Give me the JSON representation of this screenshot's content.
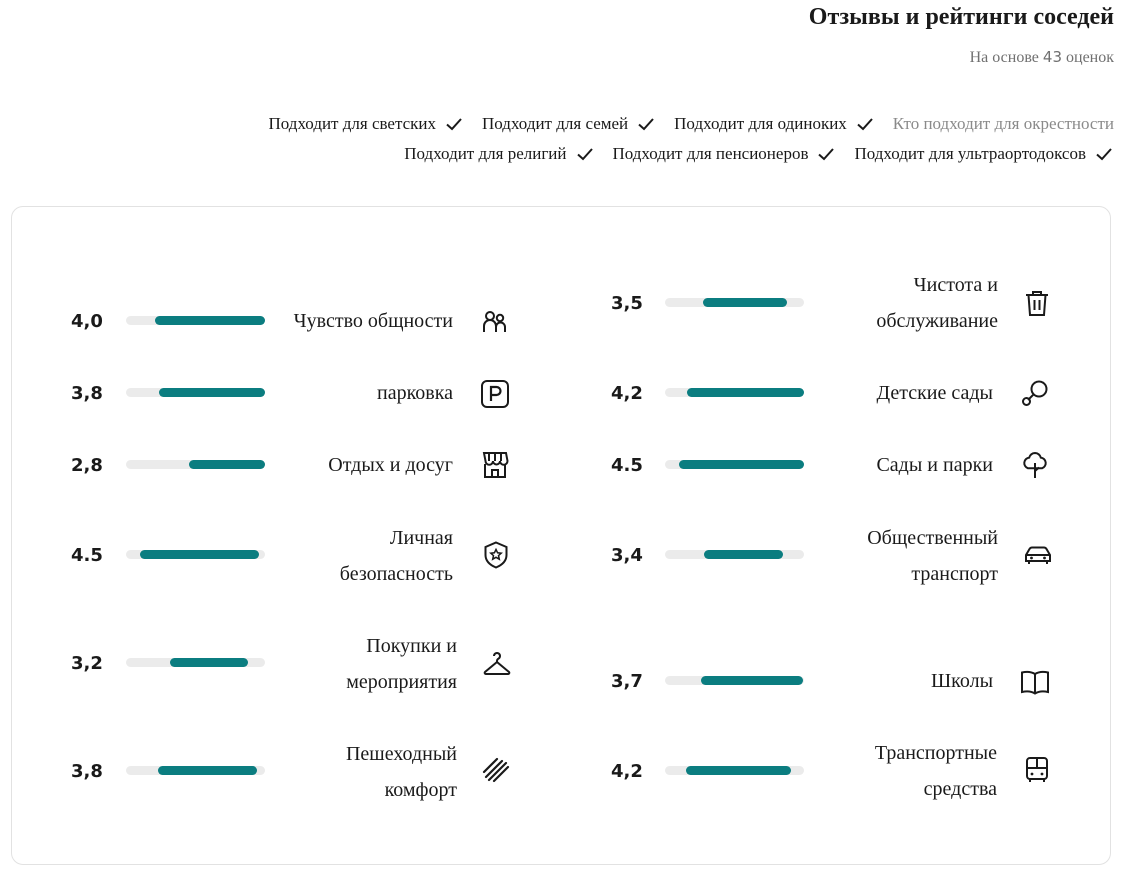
{
  "header": {
    "title": "Отзывы и рейтинги соседей",
    "subtitle_prefix": "На основе",
    "subtitle_count": "43",
    "subtitle_suffix": "оценок"
  },
  "suitability": {
    "row1": [
      {
        "label": "Подходит для светских",
        "checked": true
      },
      {
        "label": "Подходит для семей",
        "checked": true
      },
      {
        "label": "Подходит для одиноких",
        "checked": true
      },
      {
        "label": "Кто подходит для окрестности",
        "checked": false
      }
    ],
    "row2": [
      {
        "label": "Подходит для религий",
        "checked": true
      },
      {
        "label": "Подходит для пенсионеров",
        "checked": true
      },
      {
        "label": "Подходит для ультраортодоксов",
        "checked": true
      }
    ]
  },
  "ratings": {
    "left": [
      {
        "score": "4,0",
        "line1": "Чувство общности",
        "line2": "",
        "icon": "people-icon",
        "fill_start": 0.21,
        "fill_end": 1.0
      },
      {
        "score": "3,8",
        "line1": "парковка",
        "line2": "",
        "icon": "parking-icon",
        "fill_start": 0.24,
        "fill_end": 1.0
      },
      {
        "score": "2,8",
        "line1": "Отдых и досуг",
        "line2": "",
        "icon": "storefront-icon",
        "fill_start": 0.45,
        "fill_end": 1.0
      },
      {
        "score": "4.5",
        "line1": "Личная",
        "line2": "безопасность",
        "icon": "shield-star-icon",
        "fill_start": 0.1,
        "fill_end": 0.96
      },
      {
        "score": "3,2",
        "line1": "Покупки и",
        "line2": "мероприятия",
        "icon": "hanger-icon",
        "fill_start": 0.32,
        "fill_end": 0.88
      },
      {
        "score": "3,8",
        "line1": "Пешеходный",
        "line2": "комфорт",
        "icon": "crosswalk-icon",
        "fill_start": 0.23,
        "fill_end": 0.94
      }
    ],
    "right": [
      {
        "score": "3,5",
        "line1": "Чистота и",
        "line2": "обслуживание",
        "icon": "trash-icon",
        "fill_start": 0.27,
        "fill_end": 0.88
      },
      {
        "score": "4,2",
        "line1": "Детские сады",
        "line2": "",
        "icon": "rattle-icon",
        "fill_start": 0.16,
        "fill_end": 1.0
      },
      {
        "score": "4.5",
        "line1": "Сады и парки",
        "line2": "",
        "icon": "tree-icon",
        "fill_start": 0.1,
        "fill_end": 1.0
      },
      {
        "score": "3,4",
        "line1": "Общественный",
        "line2": "транспорт",
        "icon": "car-icon",
        "fill_start": 0.28,
        "fill_end": 0.85
      },
      {
        "score": "3,7",
        "line1": "Школы",
        "line2": "",
        "icon": "book-icon",
        "fill_start": 0.26,
        "fill_end": 0.99
      },
      {
        "score": "4,2",
        "line1": "Транспортные",
        "line2": "средства",
        "icon": "bus-icon",
        "fill_start": 0.15,
        "fill_end": 0.91
      }
    ]
  },
  "colors": {
    "accent": "#0b7d80",
    "track": "#ebebeb",
    "muted": "#8a8a8a"
  }
}
